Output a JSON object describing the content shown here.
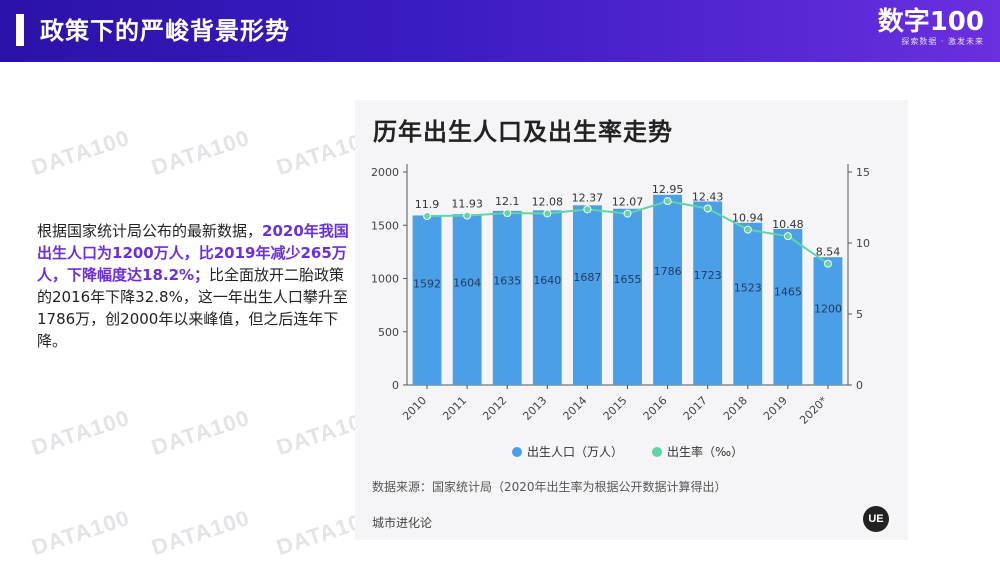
{
  "header": {
    "title": "政策下的严峻背景形势",
    "logo_brand": "数字100",
    "logo_slogan": "探索数据 · 激发未来"
  },
  "watermark": "DATA100",
  "text": {
    "line1": "根据国家统计局公布的最新数据，",
    "highlight": "2020年我国出生人口为1200万人，比2019年减少265万人，下降幅度达18.2%；",
    "rest": "比全面放开二胎政策的2016年下降32.8%，这一年出生人口攀升至1786万，创2000年以来峰值，但之后连年下降。"
  },
  "chart_data": {
    "type": "bar",
    "title": "历年出生人口及出生率走势",
    "categories": [
      "2010",
      "2011",
      "2012",
      "2013",
      "2014",
      "2015",
      "2016",
      "2017",
      "2018",
      "2019",
      "2020*"
    ],
    "series": [
      {
        "name": "出生人口（万人）",
        "type": "bar",
        "axis": "left",
        "color": "#4a9fe6",
        "values": [
          1592,
          1604,
          1635,
          1640,
          1687,
          1655,
          1786,
          1723,
          1523,
          1465,
          1200
        ]
      },
      {
        "name": "出生率（‰）",
        "type": "line",
        "axis": "right",
        "color": "#5fd6a6",
        "values": [
          11.9,
          11.93,
          12.1,
          12.08,
          12.37,
          12.07,
          12.95,
          12.43,
          10.94,
          10.48,
          8.54
        ]
      }
    ],
    "y_left": {
      "min": 0,
      "max": 2000,
      "ticks": [
        0,
        500,
        1000,
        1500,
        2000
      ]
    },
    "y_right": {
      "min": 0,
      "max": 15,
      "ticks": [
        0,
        5,
        10,
        15
      ]
    },
    "legend_position": "bottom",
    "grid": false
  },
  "footer": {
    "source": "数据来源：国家统计局（2020年出生率为根据公开数据计算得出）",
    "publisher": "城市进化论",
    "publisher_logo": "UE"
  }
}
